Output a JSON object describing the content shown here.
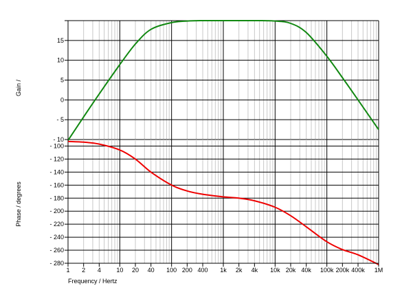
{
  "chart_data": [
    {
      "type": "line",
      "panel": "gain",
      "title": "",
      "xlabel": "",
      "ylabel": "Gain /",
      "xscale": "log",
      "xlim": [
        1,
        1000000
      ],
      "ylim": [
        -10,
        20
      ],
      "yticks": [
        15,
        10,
        5,
        0,
        -5,
        -10
      ],
      "ytick_labels": [
        "15",
        "10",
        "5",
        "0",
        "- 5",
        "- 10"
      ],
      "grid": true,
      "series": [
        {
          "color": "#118811",
          "x": [
            1,
            2,
            4,
            10,
            20,
            40,
            100,
            200,
            400,
            1000,
            2000,
            4000,
            10000,
            20000,
            40000,
            100000,
            200000,
            400000,
            1000000
          ],
          "y": [
            -10.2,
            -4.3,
            1.5,
            8.9,
            14.1,
            17.8,
            19.5,
            19.9,
            20,
            20,
            20,
            20,
            19.9,
            19.3,
            17.0,
            11.0,
            5.6,
            0.0,
            -7.5
          ]
        }
      ]
    },
    {
      "type": "line",
      "panel": "phase",
      "title": "",
      "xlabel": "Frequency / Hertz",
      "ylabel": "Phase / degrees",
      "xscale": "log",
      "xlim": [
        1,
        1000000
      ],
      "ylim": [
        -280,
        -90
      ],
      "yticks": [
        -100,
        -120,
        -140,
        -160,
        -180,
        -200,
        -220,
        -240,
        -260,
        -280
      ],
      "ytick_labels": [
        "- 100",
        "- 120",
        "- 140",
        "- 160",
        "- 180",
        "- 200",
        "- 220",
        "- 240",
        "- 260",
        "- 280"
      ],
      "xticks": [
        1,
        2,
        4,
        10,
        20,
        40,
        100,
        200,
        400,
        1000,
        2000,
        4000,
        10000,
        20000,
        40000,
        100000,
        200000,
        400000,
        1000000
      ],
      "xtick_labels": [
        "1",
        "2",
        "4",
        "10",
        "20",
        "40",
        "100",
        "200",
        "400",
        "1k",
        "2k",
        "4k",
        "10k",
        "20k",
        "40k",
        "100k",
        "200k",
        "400k",
        "1M"
      ],
      "grid": true,
      "series": [
        {
          "color": "#ee0000",
          "x": [
            1,
            2,
            4,
            10,
            20,
            40,
            100,
            200,
            400,
            1000,
            2000,
            4000,
            10000,
            20000,
            40000,
            100000,
            200000,
            400000,
            1000000
          ],
          "y": [
            -93,
            -94,
            -97,
            -106,
            -120,
            -140,
            -160,
            -169,
            -174,
            -178,
            -180,
            -184,
            -194,
            -207,
            -224,
            -247,
            -259,
            -267,
            -282
          ]
        }
      ]
    }
  ]
}
